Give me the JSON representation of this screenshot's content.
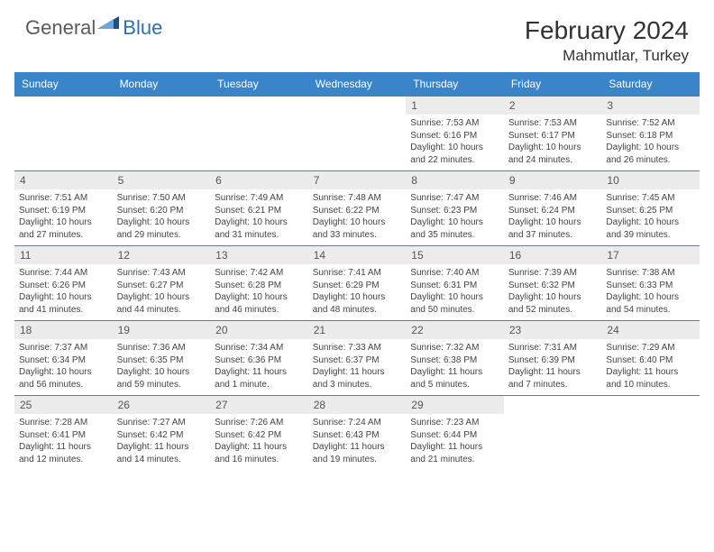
{
  "brand": {
    "part1": "General",
    "part2": "Blue"
  },
  "title": "February 2024",
  "location": "Mahmutlar, Turkey",
  "title_fontsize": 28,
  "location_fontsize": 17,
  "colors": {
    "header_bg": "#3a85c9",
    "header_text": "#ffffff",
    "daynum_bg": "#ececec",
    "daynum_text": "#555555",
    "body_text": "#444444",
    "row_border": "#6a7a8a",
    "logo_general": "#5a5a5a",
    "logo_blue": "#2f6fad",
    "logo_tri_light": "#6fa6d8",
    "logo_tri_dark": "#1f4e86"
  },
  "day_headers": [
    "Sunday",
    "Monday",
    "Tuesday",
    "Wednesday",
    "Thursday",
    "Friday",
    "Saturday"
  ],
  "weeks": [
    [
      {
        "blank": true
      },
      {
        "blank": true
      },
      {
        "blank": true
      },
      {
        "blank": true
      },
      {
        "n": "1",
        "sr": "7:53 AM",
        "ss": "6:16 PM",
        "dl": "10 hours and 22 minutes."
      },
      {
        "n": "2",
        "sr": "7:53 AM",
        "ss": "6:17 PM",
        "dl": "10 hours and 24 minutes."
      },
      {
        "n": "3",
        "sr": "7:52 AM",
        "ss": "6:18 PM",
        "dl": "10 hours and 26 minutes."
      }
    ],
    [
      {
        "n": "4",
        "sr": "7:51 AM",
        "ss": "6:19 PM",
        "dl": "10 hours and 27 minutes."
      },
      {
        "n": "5",
        "sr": "7:50 AM",
        "ss": "6:20 PM",
        "dl": "10 hours and 29 minutes."
      },
      {
        "n": "6",
        "sr": "7:49 AM",
        "ss": "6:21 PM",
        "dl": "10 hours and 31 minutes."
      },
      {
        "n": "7",
        "sr": "7:48 AM",
        "ss": "6:22 PM",
        "dl": "10 hours and 33 minutes."
      },
      {
        "n": "8",
        "sr": "7:47 AM",
        "ss": "6:23 PM",
        "dl": "10 hours and 35 minutes."
      },
      {
        "n": "9",
        "sr": "7:46 AM",
        "ss": "6:24 PM",
        "dl": "10 hours and 37 minutes."
      },
      {
        "n": "10",
        "sr": "7:45 AM",
        "ss": "6:25 PM",
        "dl": "10 hours and 39 minutes."
      }
    ],
    [
      {
        "n": "11",
        "sr": "7:44 AM",
        "ss": "6:26 PM",
        "dl": "10 hours and 41 minutes."
      },
      {
        "n": "12",
        "sr": "7:43 AM",
        "ss": "6:27 PM",
        "dl": "10 hours and 44 minutes."
      },
      {
        "n": "13",
        "sr": "7:42 AM",
        "ss": "6:28 PM",
        "dl": "10 hours and 46 minutes."
      },
      {
        "n": "14",
        "sr": "7:41 AM",
        "ss": "6:29 PM",
        "dl": "10 hours and 48 minutes."
      },
      {
        "n": "15",
        "sr": "7:40 AM",
        "ss": "6:31 PM",
        "dl": "10 hours and 50 minutes."
      },
      {
        "n": "16",
        "sr": "7:39 AM",
        "ss": "6:32 PM",
        "dl": "10 hours and 52 minutes."
      },
      {
        "n": "17",
        "sr": "7:38 AM",
        "ss": "6:33 PM",
        "dl": "10 hours and 54 minutes."
      }
    ],
    [
      {
        "n": "18",
        "sr": "7:37 AM",
        "ss": "6:34 PM",
        "dl": "10 hours and 56 minutes."
      },
      {
        "n": "19",
        "sr": "7:36 AM",
        "ss": "6:35 PM",
        "dl": "10 hours and 59 minutes."
      },
      {
        "n": "20",
        "sr": "7:34 AM",
        "ss": "6:36 PM",
        "dl": "11 hours and 1 minute."
      },
      {
        "n": "21",
        "sr": "7:33 AM",
        "ss": "6:37 PM",
        "dl": "11 hours and 3 minutes."
      },
      {
        "n": "22",
        "sr": "7:32 AM",
        "ss": "6:38 PM",
        "dl": "11 hours and 5 minutes."
      },
      {
        "n": "23",
        "sr": "7:31 AM",
        "ss": "6:39 PM",
        "dl": "11 hours and 7 minutes."
      },
      {
        "n": "24",
        "sr": "7:29 AM",
        "ss": "6:40 PM",
        "dl": "11 hours and 10 minutes."
      }
    ],
    [
      {
        "n": "25",
        "sr": "7:28 AM",
        "ss": "6:41 PM",
        "dl": "11 hours and 12 minutes."
      },
      {
        "n": "26",
        "sr": "7:27 AM",
        "ss": "6:42 PM",
        "dl": "11 hours and 14 minutes."
      },
      {
        "n": "27",
        "sr": "7:26 AM",
        "ss": "6:42 PM",
        "dl": "11 hours and 16 minutes."
      },
      {
        "n": "28",
        "sr": "7:24 AM",
        "ss": "6:43 PM",
        "dl": "11 hours and 19 minutes."
      },
      {
        "n": "29",
        "sr": "7:23 AM",
        "ss": "6:44 PM",
        "dl": "11 hours and 21 minutes."
      },
      {
        "blank": true
      },
      {
        "blank": true
      }
    ]
  ],
  "labels": {
    "sunrise": "Sunrise: ",
    "sunset": "Sunset: ",
    "daylight": "Daylight: "
  }
}
